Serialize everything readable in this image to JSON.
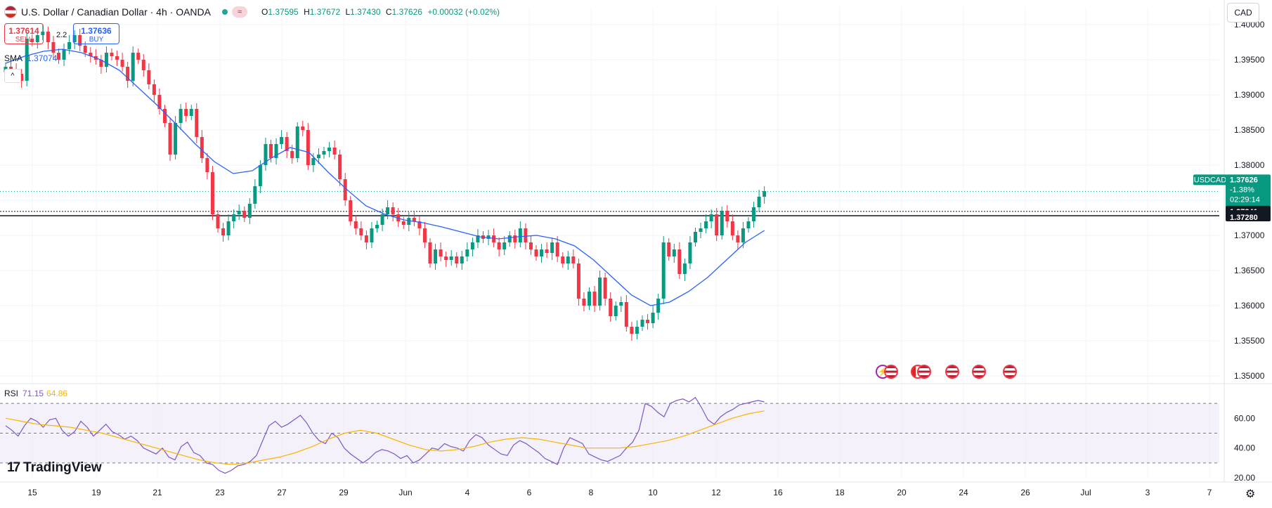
{
  "header": {
    "title": "U.S. Dollar / Canadian Dollar · 4h · OANDA",
    "ohlc": [
      {
        "k": "O",
        "v": "1.37595"
      },
      {
        "k": "H",
        "v": "1.37672"
      },
      {
        "k": "L",
        "v": "1.37430"
      },
      {
        "k": "C",
        "v": "1.37626"
      },
      {
        "k": "",
        "v": "+0.00032 (+0.02%)"
      }
    ],
    "currency_button": "CAD"
  },
  "trade": {
    "sell_price": "1.37614",
    "sell_label": "SELL",
    "spread": "2.2",
    "buy_price": "1.37636",
    "buy_label": "BUY"
  },
  "sma_legend": {
    "label": "SMA",
    "value": "1.37074"
  },
  "rsi_legend": {
    "label": "RSI",
    "rsi_value": "71.15",
    "ma_value": "64.86"
  },
  "brand": {
    "name": "TradingView",
    "mark": "17"
  },
  "colors": {
    "up": "#089981",
    "down": "#f23645",
    "sma": "#2962ff",
    "rsi": "#7e57c2",
    "rsi_ma": "#f7b500",
    "rsi_band": "#ede7f6"
  },
  "chart_data": [
    {
      "type": "candlestick",
      "symbol": "USDCAD",
      "timeframe": "4h",
      "price_axis_ticks": [
        "1.40000",
        "1.39500",
        "1.39000",
        "1.38500",
        "1.38000",
        "1.37500",
        "1.37000",
        "1.36500",
        "1.36000",
        "1.35500",
        "1.35000"
      ],
      "time_axis_ticks": [
        "15",
        "19",
        "21",
        "23",
        "27",
        "29",
        "Jun",
        "4",
        "6",
        "8",
        "10",
        "12",
        "16",
        "18",
        "20",
        "24",
        "26",
        "Jul",
        "3",
        "7"
      ],
      "ylim": [
        1.3495,
        1.4025
      ],
      "price_labels": [
        {
          "text": "USDCAD",
          "kind": "symbol"
        },
        {
          "text": "1.37626",
          "kind": "last"
        },
        {
          "text": "-1.38%",
          "kind": "last"
        },
        {
          "text": "02:29:14",
          "kind": "last"
        },
        {
          "text": "1.37341",
          "kind": "level"
        },
        {
          "text": "1.37280",
          "kind": "level"
        }
      ],
      "levels": [
        1.37626,
        1.37341,
        1.3728
      ],
      "candles_close": [
        1.394,
        1.3935,
        1.393,
        1.392,
        1.398,
        1.3975,
        1.3985,
        1.399,
        1.3975,
        1.396,
        1.395,
        1.3965,
        1.3975,
        1.3985,
        1.397,
        1.396,
        1.3955,
        1.395,
        1.394,
        1.396,
        1.3955,
        1.395,
        1.394,
        1.392,
        1.396,
        1.395,
        1.3935,
        1.3915,
        1.39,
        1.388,
        1.386,
        1.3815,
        1.386,
        1.388,
        1.387,
        1.388,
        1.384,
        1.381,
        1.379,
        1.373,
        1.371,
        1.37,
        1.372,
        1.373,
        1.3735,
        1.3725,
        1.3745,
        1.377,
        1.38,
        1.383,
        1.381,
        1.383,
        1.384,
        1.382,
        1.381,
        1.3855,
        1.385,
        1.38,
        1.381,
        1.3815,
        1.382,
        1.3825,
        1.3815,
        1.378,
        1.375,
        1.372,
        1.371,
        1.37,
        1.369,
        1.371,
        1.3715,
        1.373,
        1.374,
        1.373,
        1.372,
        1.3715,
        1.3725,
        1.372,
        1.371,
        1.369,
        1.366,
        1.368,
        1.367,
        1.3665,
        1.367,
        1.366,
        1.367,
        1.368,
        1.369,
        1.37,
        1.3695,
        1.37,
        1.369,
        1.368,
        1.369,
        1.37,
        1.369,
        1.371,
        1.369,
        1.368,
        1.367,
        1.368,
        1.3675,
        1.369,
        1.367,
        1.366,
        1.367,
        1.366,
        1.361,
        1.36,
        1.362,
        1.36,
        1.364,
        1.361,
        1.3585,
        1.36,
        1.3605,
        1.357,
        1.356,
        1.357,
        1.358,
        1.3575,
        1.359,
        1.361,
        1.369,
        1.367,
        1.368,
        1.3645,
        1.366,
        1.369,
        1.3705,
        1.371,
        1.372,
        1.373,
        1.37,
        1.3735,
        1.372,
        1.37,
        1.369,
        1.371,
        1.372,
        1.374,
        1.3755,
        1.3763
      ]
    },
    {
      "type": "line",
      "name": "SMA",
      "series": [
        {
          "name": "SMA",
          "values": [
            1.3945,
            1.3955,
            1.3962,
            1.3965,
            1.396,
            1.395,
            1.3935,
            1.391,
            1.3885,
            1.3858,
            1.383,
            1.3805,
            1.3788,
            1.3792,
            1.381,
            1.3825,
            1.3818,
            1.379,
            1.3765,
            1.3742,
            1.373,
            1.3722,
            1.3718,
            1.3712,
            1.3705,
            1.3698,
            1.3695,
            1.3698,
            1.37,
            1.3695,
            1.3685,
            1.3665,
            1.364,
            1.3615,
            1.36,
            1.3605,
            1.362,
            1.364,
            1.3665,
            1.369,
            1.3707
          ]
        }
      ]
    },
    {
      "type": "line",
      "name": "RSI",
      "ylim": [
        20,
        80
      ],
      "y_ticks": [
        "60.00",
        "40.00",
        "20.00"
      ],
      "levels": [
        70,
        50,
        30
      ],
      "series": [
        {
          "name": "RSI",
          "values": [
            55,
            52,
            48,
            55,
            60,
            58,
            54,
            59,
            60,
            52,
            48,
            51,
            58,
            54,
            48,
            52,
            56,
            51,
            49,
            46,
            48,
            45,
            40,
            38,
            36,
            40,
            34,
            32,
            41,
            44,
            37,
            35,
            30,
            29,
            25,
            23,
            25,
            28,
            29,
            31,
            35,
            45,
            55,
            58,
            54,
            56,
            59,
            62,
            57,
            50,
            45,
            43,
            50,
            47,
            40,
            36,
            33,
            30,
            33,
            37,
            39,
            38,
            36,
            33,
            35,
            30,
            32,
            36,
            40,
            39,
            43,
            41,
            40,
            38,
            45,
            49,
            47,
            42,
            39,
            36,
            35,
            42,
            45,
            43,
            40,
            37,
            33,
            31,
            29,
            40,
            47,
            45,
            43,
            36,
            34,
            32,
            31,
            33,
            35,
            40,
            44,
            52,
            70,
            68,
            64,
            61,
            70,
            72,
            73,
            71,
            74,
            67,
            59,
            56,
            61,
            64,
            66,
            69,
            70,
            71,
            72,
            71
          ]
        },
        {
          "name": "RSI MA",
          "values": [
            60,
            58,
            56,
            55,
            54,
            52,
            50,
            47,
            44,
            41,
            38,
            35,
            32,
            30,
            29,
            30,
            32,
            34,
            37,
            41,
            46,
            50,
            52,
            50,
            46,
            42,
            39,
            38,
            39,
            41,
            44,
            46,
            47,
            46,
            44,
            42,
            40,
            40,
            40,
            41,
            43,
            45,
            48,
            52,
            56,
            60,
            63,
            65
          ]
        }
      ]
    }
  ]
}
